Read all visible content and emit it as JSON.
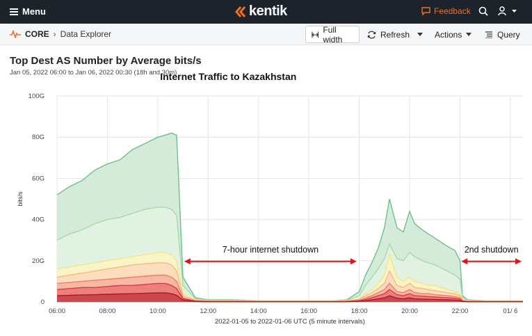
{
  "header": {
    "menu_label": "Menu",
    "logo_text": "kentik",
    "feedback_label": "Feedback"
  },
  "breadcrumb": {
    "root": "CORE",
    "page": "Data Explorer"
  },
  "toolbar": {
    "full_width_label": "Full width",
    "refresh_label": "Refresh",
    "actions_label": "Actions",
    "query_label": "Query"
  },
  "chart_data": {
    "type": "area",
    "title": "Top Dest AS Number by Average bits/s",
    "subtitle": "Jan 05, 2022 06:00 to Jan 06, 2022 00:30 (18h and 30m)",
    "annotation_title": "Internet Traffic to Kazakhstan",
    "xlabel": "2022-01-05 to 2022-01-06 UTC (5 minute intervals)",
    "ylabel": "bits/s",
    "x_ticks": [
      "06:00",
      "08:00",
      "10:00",
      "12:00",
      "14:00",
      "16:00",
      "18:00",
      "20:00",
      "22:00",
      "01/ 6"
    ],
    "x_tick_hours": [
      6,
      8,
      10,
      12,
      14,
      16,
      18,
      20,
      22,
      24
    ],
    "x_range_hours": [
      6,
      24.5
    ],
    "y_ticks": [
      "0",
      "20G",
      "40G",
      "60G",
      "80G",
      "100G"
    ],
    "y_tick_values": [
      0,
      20,
      40,
      60,
      80,
      100
    ],
    "ylim": [
      0,
      100
    ],
    "y_unit": "Gbit/s",
    "grid": true,
    "x_hours": [
      6.0,
      6.5,
      7.0,
      7.5,
      8.0,
      8.5,
      9.0,
      9.5,
      10.0,
      10.3,
      10.55,
      10.75,
      11.0,
      11.5,
      12.0,
      13.0,
      14.0,
      15.0,
      16.0,
      17.0,
      17.5,
      18.0,
      18.25,
      18.5,
      18.75,
      19.0,
      19.2,
      19.5,
      19.75,
      20.0,
      20.2,
      20.5,
      20.75,
      21.0,
      21.5,
      21.8,
      22.0,
      22.1,
      22.3,
      23.0,
      24.0,
      24.5
    ],
    "series": [
      {
        "name": "",
        "color": "#6fbf8a",
        "fill": "#cfe9d6",
        "values": [
          52,
          56,
          59,
          64,
          67,
          69,
          74,
          77,
          80,
          81,
          82,
          81,
          12,
          2,
          1,
          1,
          0.5,
          0.5,
          0.5,
          0.5,
          1,
          5,
          13,
          19,
          26,
          36,
          50,
          36,
          34,
          44,
          38,
          35,
          33,
          31,
          27,
          25,
          20,
          3,
          1,
          0.5,
          0.5,
          0.5
        ]
      },
      {
        "name": "",
        "color": "#a9d9a8",
        "fill": "#e3f3e2",
        "values": [
          30,
          33,
          35,
          38,
          40,
          41,
          43,
          45,
          46,
          46,
          45,
          42,
          8,
          1.5,
          0.8,
          0.8,
          0.4,
          0.4,
          0.4,
          0.4,
          0.8,
          3,
          8,
          12,
          16,
          21,
          28,
          21,
          20,
          24,
          22,
          20,
          19,
          18,
          15,
          13,
          11,
          2,
          0.8,
          0.4,
          0.4,
          0.4
        ]
      },
      {
        "name": "",
        "color": "#f4e58a",
        "fill": "#fbf4c4",
        "values": [
          16,
          17,
          18,
          19,
          20,
          21,
          22,
          23,
          24,
          24,
          23,
          20,
          4,
          1,
          0.5,
          0.5,
          0.3,
          0.3,
          0.3,
          0.3,
          0.5,
          1.5,
          4,
          6,
          9,
          13,
          23,
          12,
          10,
          12,
          10,
          9,
          8,
          8,
          6,
          5,
          4,
          1,
          0.5,
          0.3,
          0.3,
          0.3
        ]
      },
      {
        "name": "",
        "color": "#f7b97e",
        "fill": "#fcdcbc",
        "values": [
          12,
          13,
          14,
          15,
          16,
          17,
          18,
          18.5,
          19,
          19,
          18,
          15,
          3,
          0.8,
          0.4,
          0.4,
          0.2,
          0.2,
          0.2,
          0.2,
          0.4,
          1.2,
          3,
          4.5,
          6.5,
          9,
          15,
          8,
          7,
          9,
          7,
          6.5,
          6,
          5.5,
          4.5,
          4,
          3,
          0.8,
          0.4,
          0.2,
          0.2,
          0.2
        ]
      },
      {
        "name": "",
        "color": "#ef7d63",
        "fill": "#f6b5a3",
        "values": [
          9,
          9.5,
          10,
          10.5,
          11,
          11.5,
          12,
          12.5,
          13,
          13,
          12,
          10,
          2,
          0.5,
          0.3,
          0.3,
          0.2,
          0.2,
          0.2,
          0.2,
          0.3,
          0.8,
          2,
          3,
          4.5,
          6,
          9,
          5,
          4.5,
          6,
          4.5,
          4,
          4,
          3.5,
          3,
          2.5,
          2,
          0.5,
          0.3,
          0.2,
          0.2,
          0.2
        ]
      },
      {
        "name": "",
        "color": "#d93a3f",
        "fill": "#ea7a77",
        "values": [
          6,
          6.5,
          7,
          7,
          7.5,
          8,
          8,
          8.5,
          9,
          9,
          8,
          6.5,
          1.5,
          0.4,
          0.2,
          0.2,
          0.1,
          0.1,
          0.1,
          0.1,
          0.2,
          0.5,
          1.2,
          2,
          3,
          4,
          6,
          3.5,
          3,
          4,
          3,
          2.8,
          2.6,
          2.4,
          2,
          1.8,
          1.4,
          0.4,
          0.2,
          0.1,
          0.1,
          0.1
        ]
      },
      {
        "name": "",
        "color": "#a9192c",
        "fill": "#c9414a",
        "values": [
          3,
          3.2,
          3.4,
          3.5,
          3.7,
          3.9,
          4,
          4.2,
          4.4,
          4.4,
          4,
          3.2,
          0.8,
          0.2,
          0.1,
          0.1,
          0.1,
          0.1,
          0.1,
          0.1,
          0.1,
          0.3,
          0.6,
          1,
          1.5,
          2,
          3,
          1.8,
          1.5,
          2,
          1.5,
          1.4,
          1.3,
          1.2,
          1,
          0.9,
          0.7,
          0.2,
          0.1,
          0.1,
          0.1,
          0.1
        ]
      }
    ],
    "annotations": [
      {
        "text": "7-hour internet shutdown",
        "from_hour": 11.05,
        "to_hour": 17.9,
        "y": 20
      },
      {
        "text": "2nd shutdown",
        "from_hour": 22.05,
        "to_hour": 24.55,
        "y": 20
      }
    ],
    "colors": {
      "arrow": "#e0141e",
      "grid": "#e4e4e4",
      "axis_text": "#444"
    }
  }
}
